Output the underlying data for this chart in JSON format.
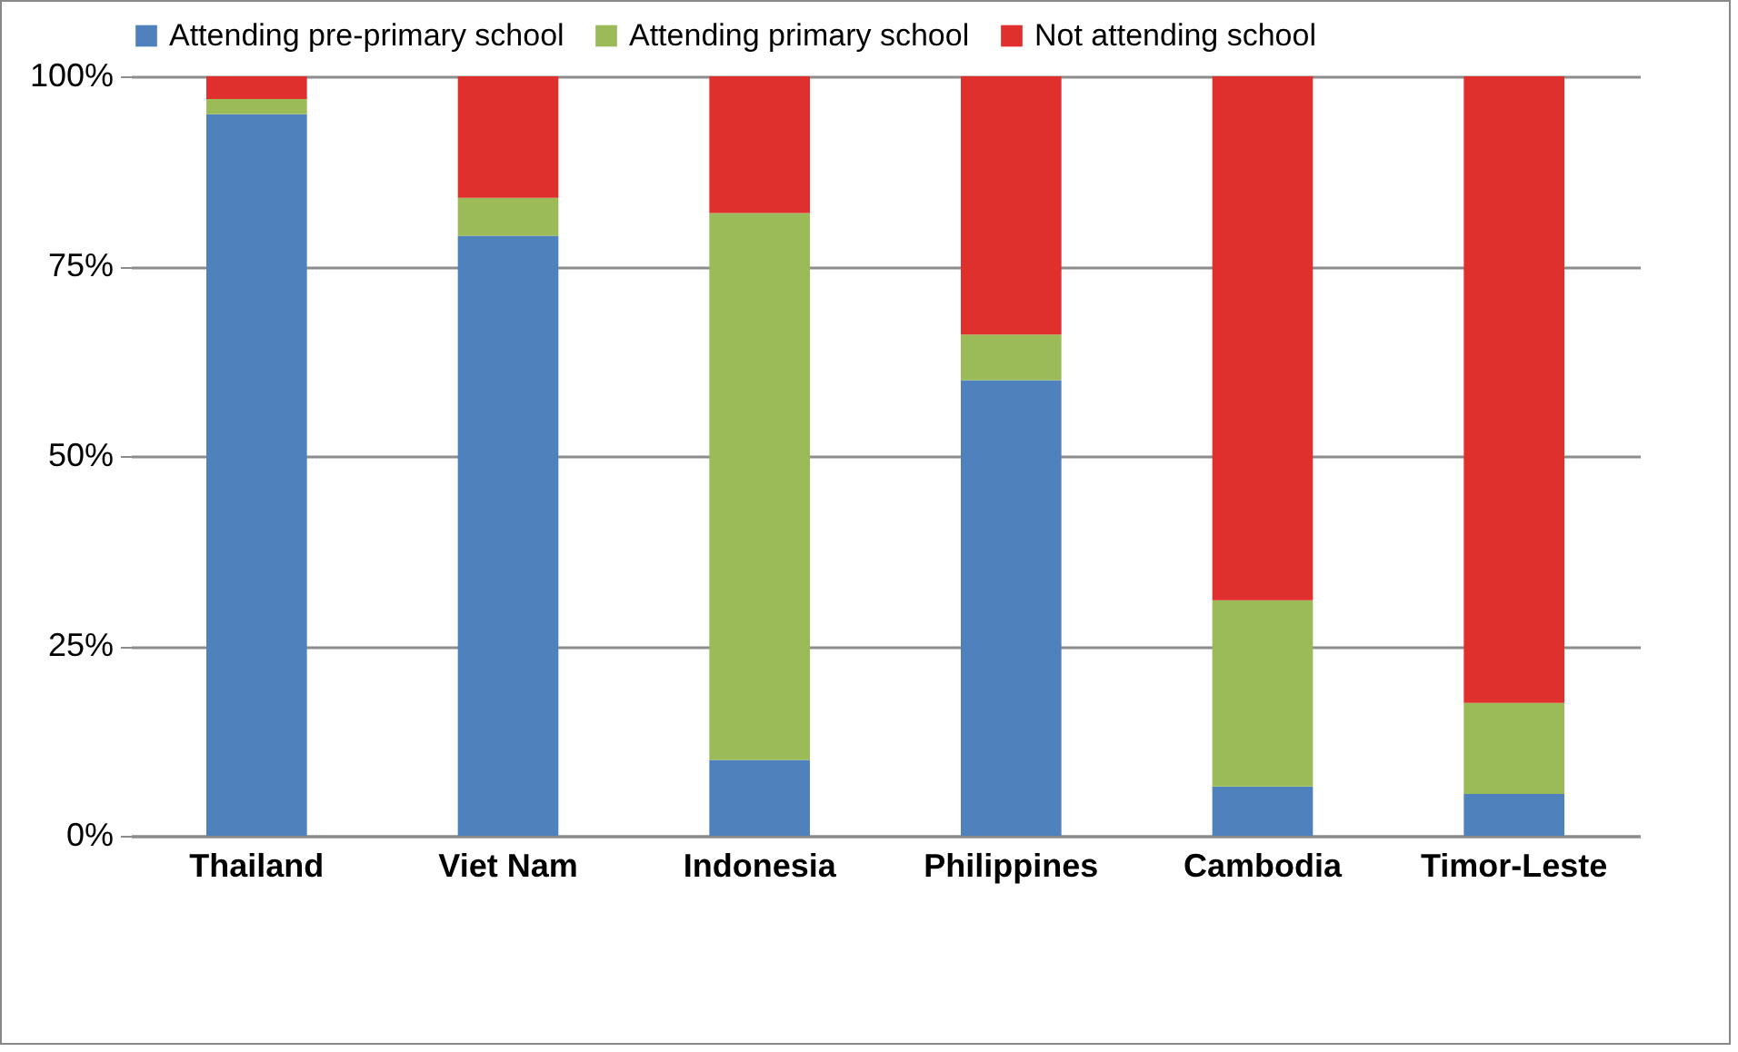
{
  "chart_data": {
    "type": "bar",
    "stacked": true,
    "categories": [
      "Thailand",
      "Viet Nam",
      "Indonesia",
      "Philippines",
      "Cambodia",
      "Timor-Leste"
    ],
    "series": [
      {
        "name": "Attending pre-primary school",
        "color": "#4f81bd",
        "values": [
          95,
          79,
          10,
          60,
          6.5,
          5.5
        ]
      },
      {
        "name": "Attending primary school",
        "color": "#9bbb59",
        "values": [
          2,
          5,
          72,
          6,
          24.5,
          12
        ]
      },
      {
        "name": "Not attending school",
        "color": "#e0302d",
        "values": [
          3,
          16,
          18,
          34,
          69,
          82.5
        ]
      }
    ],
    "ylim": [
      0,
      100
    ],
    "yticks": [
      {
        "value": 0,
        "label": "0%"
      },
      {
        "value": 25,
        "label": "25%"
      },
      {
        "value": 50,
        "label": "50%"
      },
      {
        "value": 75,
        "label": "75%"
      },
      {
        "value": 100,
        "label": "100%"
      }
    ],
    "grid": "y",
    "legend": "top"
  }
}
